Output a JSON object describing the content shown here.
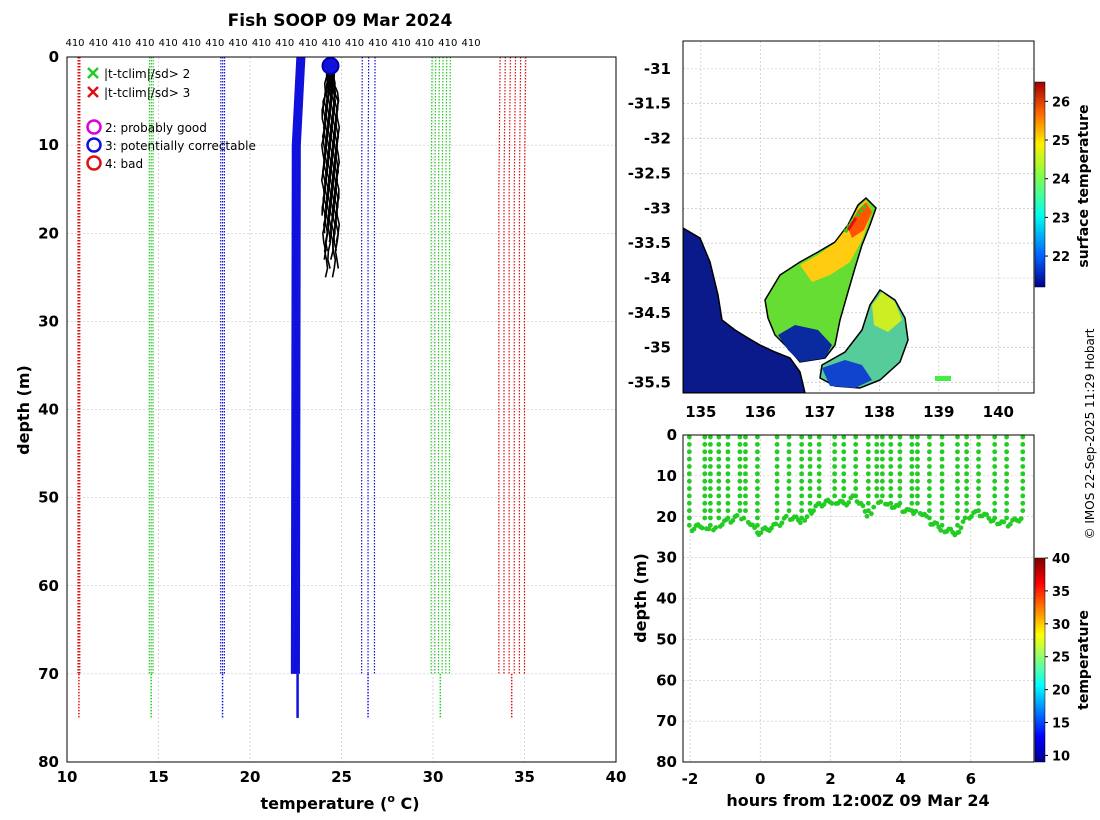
{
  "title": "Fish SOOP 09 Mar 2024",
  "credit": "© IMOS 22-Sep-2025 11:29 Hobart",
  "colors": {
    "green": "#22cc22",
    "red": "#dd1111",
    "blue": "#1111dd",
    "black": "#000000",
    "magenta": "#dd00dd"
  },
  "chart_data": [
    {
      "type": "line",
      "name": "profile",
      "xlabel": "temperature (",
      "xlabel_sup": "o",
      "xlabel_end": " C)",
      "ylabel": "depth (m)",
      "xlim": [
        10,
        40
      ],
      "ylim": [
        80,
        0
      ],
      "xticks": [
        "10",
        "15",
        "20",
        "25",
        "30",
        "35",
        "40"
      ],
      "yticks": [
        "0",
        "10",
        "20",
        "30",
        "40",
        "50",
        "60",
        "70",
        "80"
      ],
      "top_labels": [
        "410",
        "410",
        "410",
        "410",
        "410",
        "410",
        "410",
        "410",
        "410",
        "410",
        "410",
        "410",
        "410",
        "410",
        "410",
        "410",
        "410",
        "410"
      ],
      "legend": {
        "cross_items": [
          {
            "label": "|t-tclim|/sd> 2",
            "color": "green"
          },
          {
            "label": "|t-tclim|/sd> 3",
            "color": "red"
          }
        ],
        "circle_items": [
          {
            "label": "2: probably good",
            "color": "magenta"
          },
          {
            "label": "3: potentially correctable",
            "color": "blue"
          },
          {
            "label": "4: bad",
            "color": "red"
          }
        ]
      },
      "envelope_series": [
        {
          "name": "clim-3sd-low",
          "color": "red",
          "temps": [
            10.6,
            10.7
          ]
        },
        {
          "name": "clim-2sd-low",
          "color": "green",
          "temps": [
            14.5,
            14.7
          ]
        },
        {
          "name": "clim-1sd-low",
          "color": "blue",
          "temps": [
            18.4,
            18.6
          ]
        },
        {
          "name": "clim-1sd-high",
          "color": "blue",
          "temps": [
            26.1,
            26.8
          ]
        },
        {
          "name": "clim-2sd-high",
          "color": "green",
          "temps": [
            29.9,
            30.9
          ]
        },
        {
          "name": "clim-3sd-high",
          "color": "red",
          "temps": [
            33.6,
            35.0
          ]
        }
      ],
      "climatology": {
        "name": "climatology-mean",
        "color": "blue",
        "surface_temp": 22.6,
        "deep_temp": 22.3,
        "depth_max": 75
      },
      "observed": {
        "name": "observed-profiles",
        "color": "black",
        "temp_min": 24.0,
        "temp_max": 24.8,
        "depth_max": 25
      },
      "flag": {
        "temp": 24.4,
        "depth": 1,
        "color": "blue"
      }
    },
    {
      "type": "heatmap",
      "name": "map",
      "xticks": [
        "135",
        "136",
        "137",
        "138",
        "139",
        "140"
      ],
      "yticks": [
        "-31",
        "-31.5",
        "-32",
        "-32.5",
        "-33",
        "-33.5",
        "-34",
        "-34.5",
        "-35",
        "-35.5"
      ],
      "xlim": [
        134.7,
        140.6
      ],
      "ylim": [
        -35.65,
        -30.6
      ],
      "colorbar_label": "surface temperature",
      "colorbar_ticks": [
        "22",
        "23",
        "24",
        "25",
        "26"
      ],
      "colorbar_range": [
        21.2,
        26.5
      ]
    },
    {
      "type": "scatter",
      "name": "depth-time",
      "xlabel": "hours from 12:00Z 09 Mar 24",
      "ylabel": "depth (m)",
      "xlim": [
        -2.2,
        7.8
      ],
      "ylim": [
        80,
        0
      ],
      "xticks": [
        "-2",
        "0",
        "2",
        "4",
        "6"
      ],
      "yticks": [
        "0",
        "10",
        "20",
        "30",
        "40",
        "50",
        "60",
        "70",
        "80"
      ],
      "colorbar_label": "temperature",
      "colorbar_ticks": [
        "10",
        "15",
        "20",
        "25",
        "30",
        "35",
        "40"
      ],
      "colorbar_range": [
        9,
        40
      ],
      "point_color": "green",
      "dive_times": [
        -2,
        -1.6,
        -1.4,
        -1.2,
        -0.9,
        -0.6,
        -0.4,
        -0.1,
        0.5,
        0.8,
        1.2,
        1.4,
        1.7,
        2.1,
        2.4,
        2.7,
        3.1,
        3.3,
        3.5,
        3.7,
        4.0,
        4.3,
        4.5,
        4.8,
        5.2,
        5.6,
        5.9,
        6.2,
        6.7,
        7.0,
        7.5
      ],
      "dive_bottoms": [
        23,
        22,
        23,
        22,
        21,
        20,
        20,
        24,
        22,
        20,
        21,
        19,
        17,
        16,
        17,
        15,
        20,
        16,
        16,
        17,
        18,
        19,
        18,
        21,
        23,
        24,
        20,
        19,
        21,
        22,
        20
      ]
    }
  ]
}
